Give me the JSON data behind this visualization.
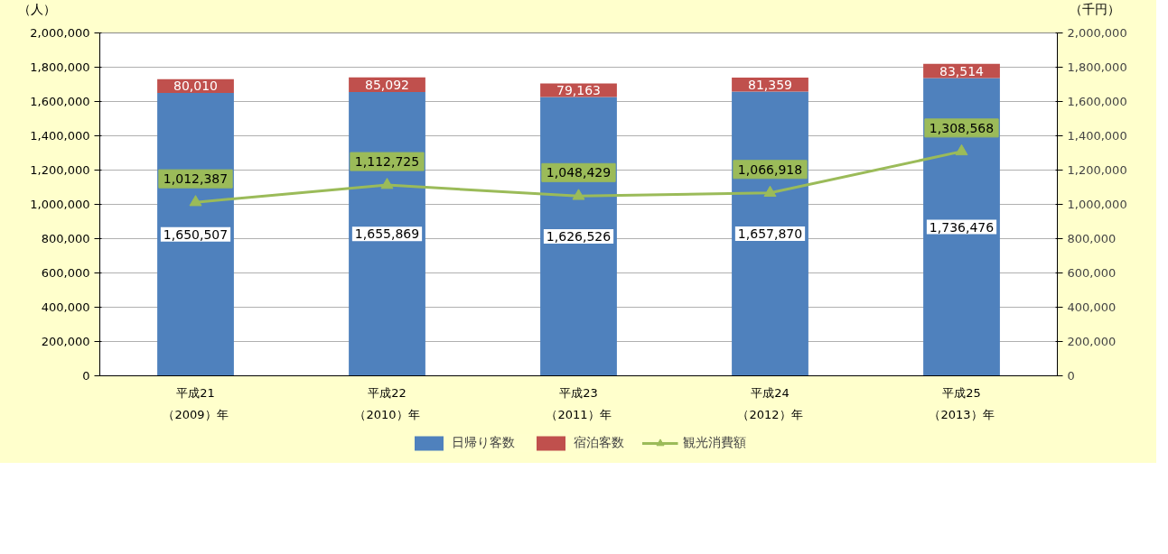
{
  "chart_data": {
    "type": "bar",
    "stacked": true,
    "categories": [
      "平成21\n（2009）年",
      "平成22\n（2010）年",
      "平成23\n（2011）年",
      "平成24\n（2012）年",
      "平成25\n（2013）年"
    ],
    "series": [
      {
        "name": "日帰り客数",
        "color": "#4f81bd",
        "values": [
          1650507,
          1655869,
          1626526,
          1657870,
          1736476
        ],
        "value_labels": [
          "1,650,507",
          "1,655,869",
          "1,626,526",
          "1,657,870",
          "1,736,476"
        ]
      },
      {
        "name": "宿泊客数",
        "color": "#c0504d",
        "values": [
          80010,
          85092,
          79163,
          81359,
          83514
        ],
        "value_labels": [
          "80,010",
          "85,092",
          "79,163",
          "81,359",
          "83,514"
        ]
      },
      {
        "name": "観光消費額",
        "type": "line",
        "axis": "y2",
        "color": "#9bbb59",
        "marker": "triangle",
        "values": [
          1012387,
          1112725,
          1048429,
          1066918,
          1308568
        ],
        "value_labels": [
          "1,012,387",
          "1,112,725",
          "1,048,429",
          "1,066,918",
          "1,308,568"
        ]
      }
    ],
    "ylabel": "（人）",
    "y2label": "（千円）",
    "ylim": [
      0,
      2000000
    ],
    "yticks": [
      {
        "value": 0,
        "label": "0"
      },
      {
        "value": 200000,
        "label": "200,000"
      },
      {
        "value": 400000,
        "label": "400,000"
      },
      {
        "value": 600000,
        "label": "600,000"
      },
      {
        "value": 800000,
        "label": "800,000"
      },
      {
        "value": 1000000,
        "label": "1,000,000"
      },
      {
        "value": 1200000,
        "label": "1,200,000"
      },
      {
        "value": 1400000,
        "label": "1,400,000"
      },
      {
        "value": 1600000,
        "label": "1,600,000"
      },
      {
        "value": 1800000,
        "label": "1,800,000"
      },
      {
        "value": 2000000,
        "label": "2,000,000"
      }
    ],
    "y2lim": [
      0,
      2000000
    ],
    "y2ticks": [
      {
        "value": 0,
        "label": "0"
      },
      {
        "value": 200000,
        "label": "200,000"
      },
      {
        "value": 400000,
        "label": "400,000"
      },
      {
        "value": 600000,
        "label": "600,000"
      },
      {
        "value": 800000,
        "label": "800,000"
      },
      {
        "value": 1000000,
        "label": "1,000,000"
      },
      {
        "value": 1200000,
        "label": "1,200,000"
      },
      {
        "value": 1400000,
        "label": "1,400,000"
      },
      {
        "value": 1600000,
        "label": "1,600,000"
      },
      {
        "value": 1800000,
        "label": "1,800,000"
      },
      {
        "value": 2000000,
        "label": "2,000,000"
      }
    ],
    "grid": "y",
    "legend": "bottom"
  }
}
